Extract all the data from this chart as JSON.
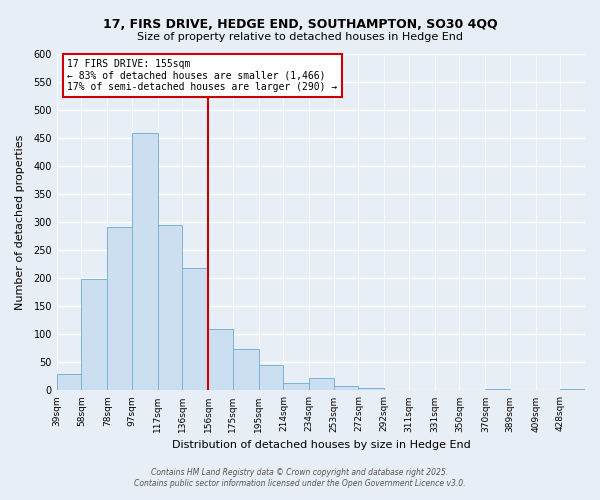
{
  "title": "17, FIRS DRIVE, HEDGE END, SOUTHAMPTON, SO30 4QQ",
  "subtitle": "Size of property relative to detached houses in Hedge End",
  "xlabel": "Distribution of detached houses by size in Hedge End",
  "ylabel": "Number of detached properties",
  "bar_counts": [
    30,
    198,
    291,
    460,
    295,
    218,
    110,
    73,
    46,
    14,
    22,
    8,
    4,
    0,
    0,
    0,
    0,
    2,
    0,
    0,
    3
  ],
  "bin_labels": [
    "39sqm",
    "58sqm",
    "78sqm",
    "97sqm",
    "117sqm",
    "136sqm",
    "156sqm",
    "175sqm",
    "195sqm",
    "214sqm",
    "234sqm",
    "253sqm",
    "272sqm",
    "292sqm",
    "311sqm",
    "331sqm",
    "350sqm",
    "370sqm",
    "389sqm",
    "409sqm",
    "428sqm"
  ],
  "bin_edges": [
    39,
    58,
    78,
    97,
    117,
    136,
    156,
    175,
    195,
    214,
    234,
    253,
    272,
    292,
    311,
    331,
    350,
    370,
    389,
    409,
    428,
    447
  ],
  "bar_color": "#ccdff0",
  "bar_edge_color": "#7ab3d4",
  "vline_x": 156,
  "vline_color": "#cc0000",
  "annotation_title": "17 FIRS DRIVE: 155sqm",
  "annotation_line1": "← 83% of detached houses are smaller (1,466)",
  "annotation_line2": "17% of semi-detached houses are larger (290) →",
  "annotation_box_facecolor": "#ffffff",
  "annotation_box_edgecolor": "#cc0000",
  "ylim": [
    0,
    600
  ],
  "yticks": [
    0,
    50,
    100,
    150,
    200,
    250,
    300,
    350,
    400,
    450,
    500,
    550,
    600
  ],
  "background_color": "#e8eef5",
  "grid_color": "#ffffff",
  "footer1": "Contains HM Land Registry data © Crown copyright and database right 2025.",
  "footer2": "Contains public sector information licensed under the Open Government Licence v3.0."
}
